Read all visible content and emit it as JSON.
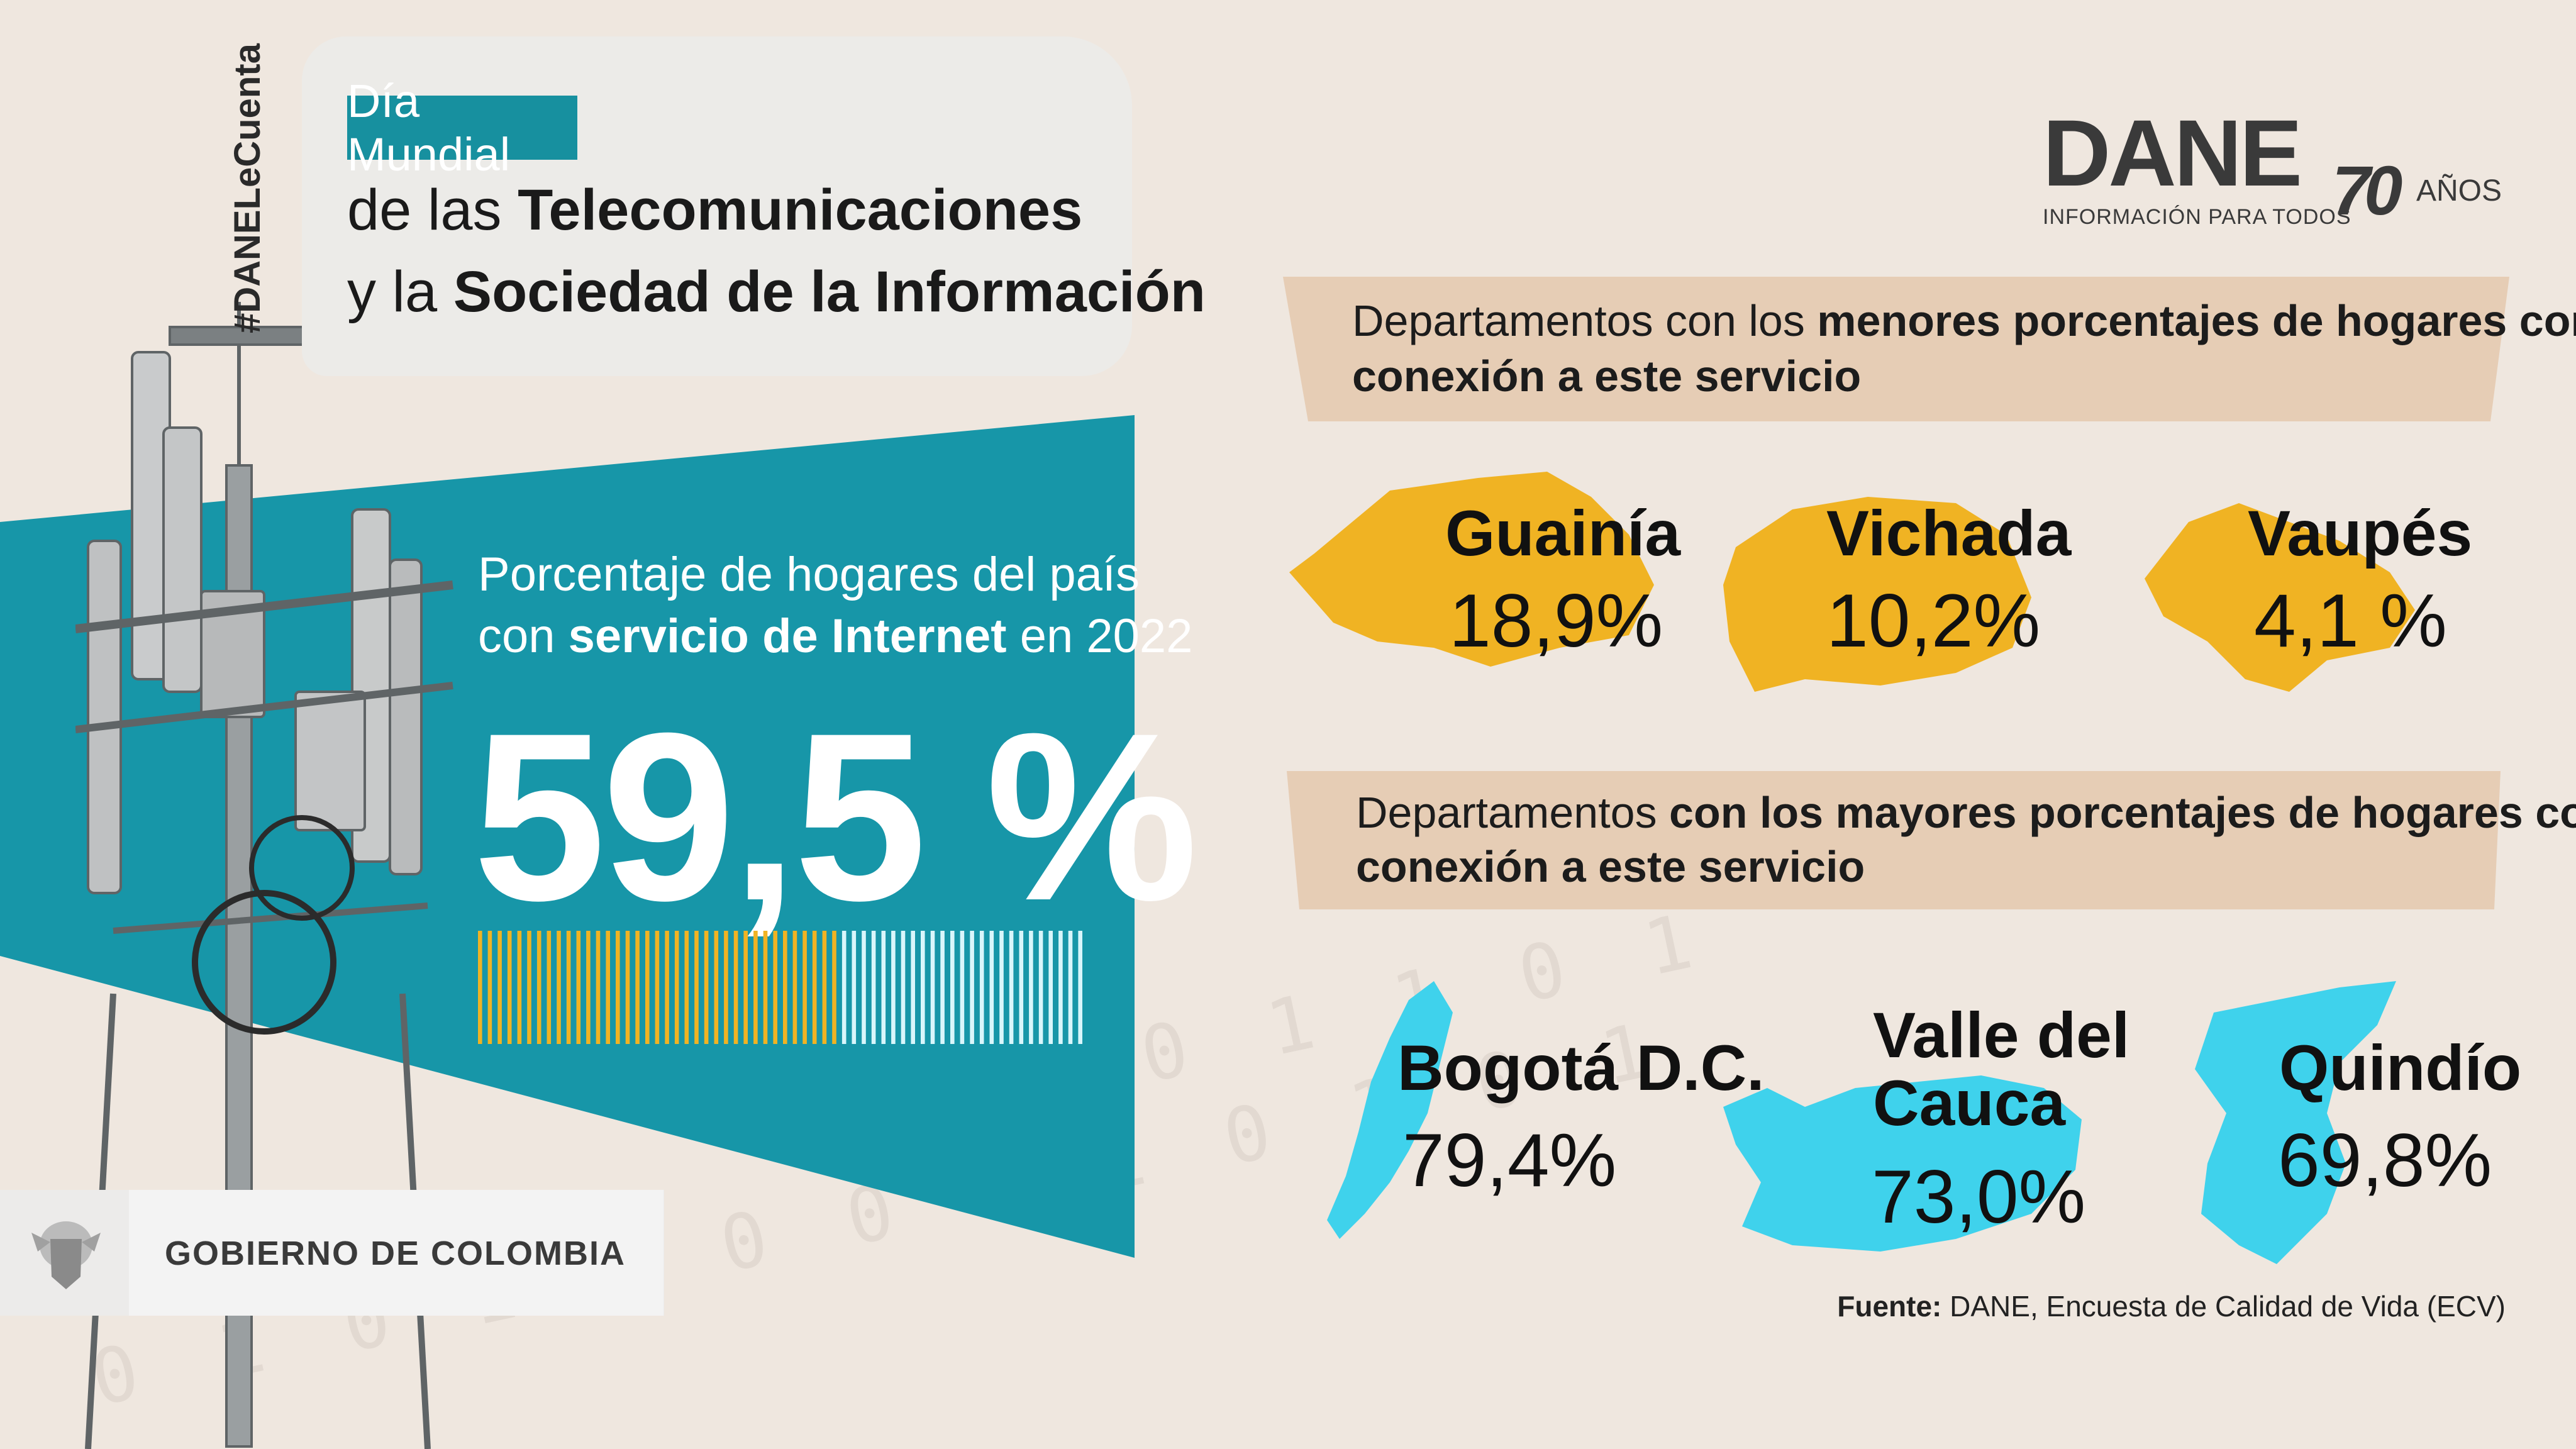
{
  "colors": {
    "teal": "#1796a8",
    "yellow": "#f0b323",
    "cyan": "#3fd2ec",
    "header_bg": "#e6cdb5",
    "background": "#efe7df"
  },
  "hashtag": "#DANELeCuenta",
  "title": {
    "tag": "Día Mundial",
    "line1_prefix": "de las ",
    "line1_bold": "Telecomunicaciones",
    "line2_prefix": "y la ",
    "line2_bold": "Sociedad de la Información"
  },
  "main_stat": {
    "line1": "Porcentaje de hogares del país",
    "line2_prefix": "con ",
    "line2_bold": "servicio de Internet",
    "line2_suffix": " en 2022",
    "value": "59,5 %",
    "fraction": 0.595
  },
  "logo": {
    "name": "DANE",
    "tagline": "INFORMACIÓN PARA TODOS",
    "anniversary_number": "70",
    "anniversary_word": "AÑOS"
  },
  "lowest": {
    "header_prefix": "Departamentos con los ",
    "header_bold1": "menores porcentajes de hogares con",
    "header_bold2": "conexión a este servicio",
    "items": [
      {
        "name": "Guainía",
        "value": "18,9%",
        "icon": "guainia-map-icon"
      },
      {
        "name": "Vichada",
        "value": "10,2%",
        "icon": "vichada-map-icon"
      },
      {
        "name": "Vaupés",
        "value": "4,1 %",
        "icon": "vaupes-map-icon"
      }
    ]
  },
  "highest": {
    "header_prefix": "Departamentos ",
    "header_bold1": "con los mayores porcentajes de hogares con",
    "header_bold2": "conexión a este servicio",
    "items": [
      {
        "name": "Bogotá D.C.",
        "value": "79,4%",
        "icon": "bogota-map-icon"
      },
      {
        "name_line1": "Valle del",
        "name_line2": "Cauca",
        "value": "73,0%",
        "icon": "valle-map-icon"
      },
      {
        "name": "Quindío",
        "value": "69,8%",
        "icon": "quindio-map-icon"
      }
    ]
  },
  "government": "GOBIERNO DE COLOMBIA",
  "source": {
    "label": "Fuente:",
    "text": " DANE, Encuesta de Calidad de Vida (ECV)"
  }
}
